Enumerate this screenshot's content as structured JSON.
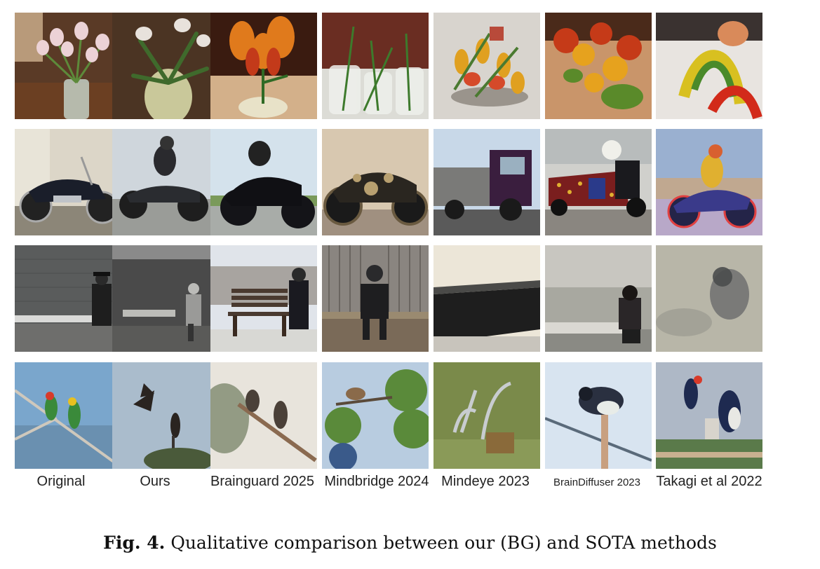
{
  "figure": {
    "columns": [
      {
        "label": "Original"
      },
      {
        "label": "Ours"
      },
      {
        "label": "Brainguard 2025"
      },
      {
        "label": "Mindbridge 2024"
      },
      {
        "label": "Mindeye 2023"
      },
      {
        "label": "BrainDiffuser 2023"
      },
      {
        "label": "Takagi et al 2022"
      }
    ],
    "rows": [
      {
        "subject": "flowers in vase",
        "tiles": [
          "tulips-in-vase",
          "white-flowers-in-vase",
          "orange-flower-closeup",
          "clear-vase-greenery",
          "colorful-flower-arrangement",
          "blurry-orange-berries",
          "abstract-colorful-spiral"
        ]
      },
      {
        "subject": "motorcycle",
        "tiles": [
          "cruiser-motorcycle",
          "rider-on-motorcycle",
          "black-motorcycle",
          "steampunk-motorcycle",
          "purple-truck",
          "decorated-red-vehicle",
          "noisy-motorcyclist"
        ]
      },
      {
        "subject": "person on bench",
        "tiles": [
          "man-on-bench",
          "grey-person-on-bench",
          "man-beside-bench",
          "armored-figure-on-bench",
          "abstract-wall-shadow",
          "person-sitting-on-ledge",
          "blurry-grey-noise"
        ]
      },
      {
        "subject": "birds on branch",
        "tiles": [
          "two-birds-on-branch",
          "birds-in-flight",
          "two-birds-on-twig",
          "bird-in-tree",
          "metal-bird-sculpture",
          "bird-on-pole",
          "two-birds-fighting"
        ]
      }
    ],
    "caption": {
      "label": "Fig. 4.",
      "text": "Qualitative comparison between our (BG) and SOTA methods"
    }
  }
}
